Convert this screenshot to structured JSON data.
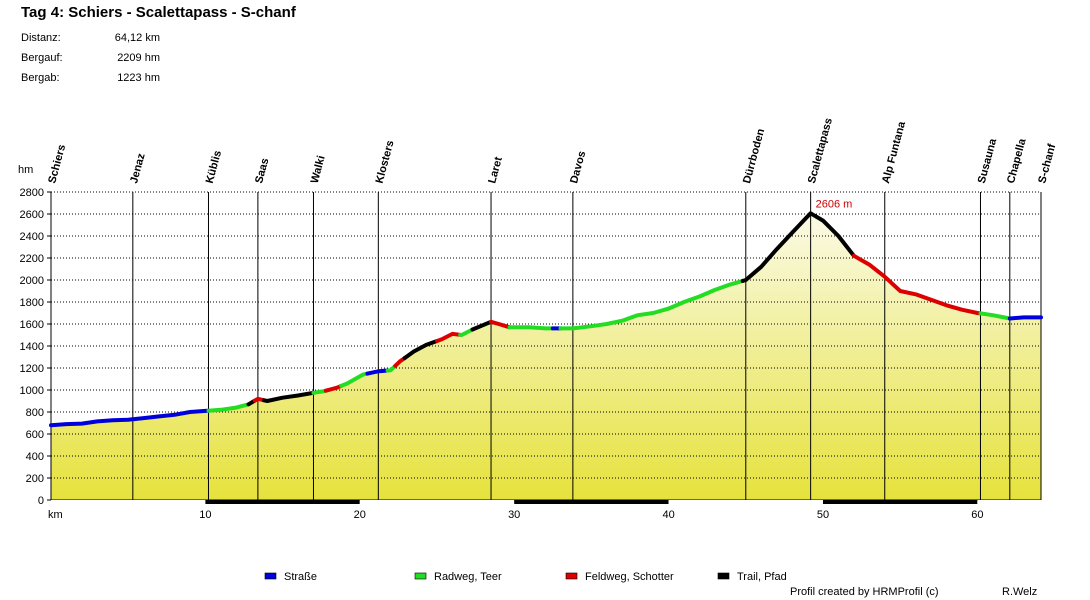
{
  "title": "Tag 4: Schiers - Scalettapass - S-chanf",
  "stats": [
    {
      "label": "Distanz:",
      "value": "64,12 km"
    },
    {
      "label": "Bergauf:",
      "value": "2209 hm"
    },
    {
      "label": "Bergab:",
      "value": "1223 hm"
    }
  ],
  "footer": {
    "credit": "Profil created by HRMProfil (c)",
    "author": "R.Welz"
  },
  "colors": {
    "strasse": "#0000dd",
    "radweg": "#22dd22",
    "feldweg": "#dd0000",
    "trail": "#000000",
    "fill_top": "#fafae6",
    "fill_bottom": "#e6e23c"
  },
  "chart_data": {
    "type": "area",
    "ylabel": "hm",
    "xlabel": "km",
    "xlim": [
      0,
      64.12
    ],
    "ylim": [
      0,
      2800
    ],
    "yticks": [
      0,
      200,
      400,
      600,
      800,
      1000,
      1200,
      1400,
      1600,
      1800,
      2000,
      2200,
      2400,
      2600,
      2800
    ],
    "xticks": [
      10,
      20,
      30,
      40,
      50,
      60
    ],
    "grid": "horizontal dotted",
    "peak_annotation": {
      "km": 49.2,
      "label": "2606 m"
    },
    "waypoints": [
      {
        "name": "Schiers",
        "km": 0
      },
      {
        "name": "Jenaz",
        "km": 5.3
      },
      {
        "name": "Küblis",
        "km": 10.2
      },
      {
        "name": "Saas",
        "km": 13.4
      },
      {
        "name": "Walki",
        "km": 17.0
      },
      {
        "name": "Klosters",
        "km": 21.2
      },
      {
        "name": "Laret",
        "km": 28.5
      },
      {
        "name": "Davos",
        "km": 33.8
      },
      {
        "name": "Dürrboden",
        "km": 45.0
      },
      {
        "name": "Scalettapass",
        "km": 49.2
      },
      {
        "name": "Alp Funtana",
        "km": 54.0
      },
      {
        "name": "Susauna",
        "km": 60.2
      },
      {
        "name": "Chapella",
        "km": 62.1
      },
      {
        "name": "S-chanf",
        "km": 64.12
      }
    ],
    "profile": [
      [
        0,
        680
      ],
      [
        1,
        690
      ],
      [
        2,
        695
      ],
      [
        3,
        715
      ],
      [
        4,
        725
      ],
      [
        5,
        730
      ],
      [
        6,
        745
      ],
      [
        7,
        760
      ],
      [
        8,
        775
      ],
      [
        9,
        800
      ],
      [
        10,
        810
      ],
      [
        11,
        820
      ],
      [
        12,
        840
      ],
      [
        12.8,
        870
      ],
      [
        13.4,
        920
      ],
      [
        14,
        900
      ],
      [
        15,
        930
      ],
      [
        16,
        950
      ],
      [
        17,
        975
      ],
      [
        17.7,
        990
      ],
      [
        18.5,
        1020
      ],
      [
        19.2,
        1060
      ],
      [
        20.2,
        1140
      ],
      [
        21.2,
        1170
      ],
      [
        22,
        1180
      ],
      [
        22.6,
        1260
      ],
      [
        23.5,
        1350
      ],
      [
        24.3,
        1410
      ],
      [
        25.3,
        1460
      ],
      [
        26,
        1510
      ],
      [
        26.6,
        1500
      ],
      [
        27.3,
        1550
      ],
      [
        28.5,
        1620
      ],
      [
        29,
        1600
      ],
      [
        29.7,
        1570
      ],
      [
        31,
        1570
      ],
      [
        32,
        1560
      ],
      [
        33.8,
        1560
      ],
      [
        35,
        1580
      ],
      [
        36,
        1600
      ],
      [
        37,
        1630
      ],
      [
        38,
        1680
      ],
      [
        39,
        1700
      ],
      [
        40,
        1740
      ],
      [
        41,
        1800
      ],
      [
        42,
        1850
      ],
      [
        43,
        1910
      ],
      [
        44,
        1960
      ],
      [
        45,
        2000
      ],
      [
        46,
        2120
      ],
      [
        47,
        2280
      ],
      [
        48,
        2430
      ],
      [
        49.2,
        2606
      ],
      [
        50,
        2540
      ],
      [
        51,
        2400
      ],
      [
        52,
        2220
      ],
      [
        53,
        2140
      ],
      [
        54,
        2030
      ],
      [
        55,
        1900
      ],
      [
        56,
        1870
      ],
      [
        57,
        1820
      ],
      [
        58,
        1770
      ],
      [
        59,
        1730
      ],
      [
        60,
        1700
      ],
      [
        61,
        1680
      ],
      [
        62.1,
        1650
      ],
      [
        63,
        1660
      ],
      [
        64.12,
        1660
      ]
    ],
    "surface_types": [
      {
        "name": "Straße",
        "color": "#0000dd"
      },
      {
        "name": "Radweg, Teer",
        "color": "#22dd22"
      },
      {
        "name": "Feldweg, Schotter",
        "color": "#dd0000"
      },
      {
        "name": "Trail, Pfad",
        "color": "#000000"
      }
    ],
    "segments": [
      {
        "from": 0,
        "to": 10.2,
        "surface": 0
      },
      {
        "from": 10.2,
        "to": 12.8,
        "surface": 1
      },
      {
        "from": 12.8,
        "to": 13.2,
        "surface": 3
      },
      {
        "from": 13.2,
        "to": 13.8,
        "surface": 2
      },
      {
        "from": 13.8,
        "to": 17.0,
        "surface": 3
      },
      {
        "from": 17.0,
        "to": 17.8,
        "surface": 1
      },
      {
        "from": 17.8,
        "to": 18.8,
        "surface": 2
      },
      {
        "from": 18.8,
        "to": 20.5,
        "surface": 1
      },
      {
        "from": 20.5,
        "to": 21.8,
        "surface": 0
      },
      {
        "from": 21.8,
        "to": 22.3,
        "surface": 1
      },
      {
        "from": 22.3,
        "to": 22.9,
        "surface": 2
      },
      {
        "from": 22.9,
        "to": 25.0,
        "surface": 3
      },
      {
        "from": 25.0,
        "to": 26.5,
        "surface": 2
      },
      {
        "from": 26.5,
        "to": 27.3,
        "surface": 1
      },
      {
        "from": 27.3,
        "to": 28.5,
        "surface": 3
      },
      {
        "from": 28.5,
        "to": 29.7,
        "surface": 2
      },
      {
        "from": 29.7,
        "to": 32.5,
        "surface": 1
      },
      {
        "from": 32.5,
        "to": 33.0,
        "surface": 0
      },
      {
        "from": 33.0,
        "to": 44.8,
        "surface": 1
      },
      {
        "from": 44.8,
        "to": 52.0,
        "surface": 3
      },
      {
        "from": 52.0,
        "to": 60.2,
        "surface": 2
      },
      {
        "from": 60.2,
        "to": 62.1,
        "surface": 1
      },
      {
        "from": 62.1,
        "to": 64.12,
        "surface": 0
      }
    ]
  }
}
